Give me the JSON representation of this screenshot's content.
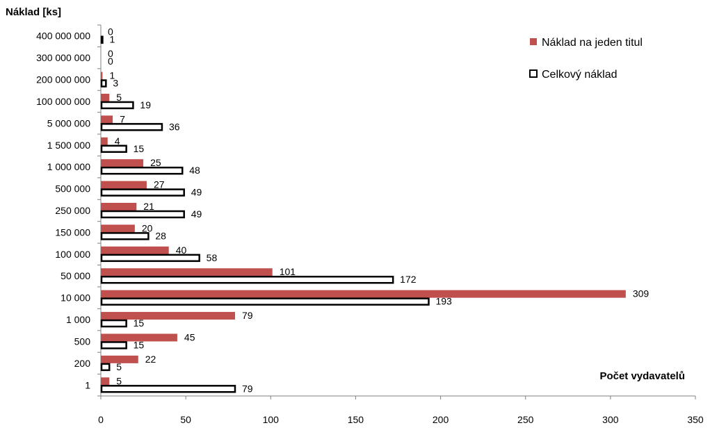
{
  "chart_data": {
    "type": "bar",
    "orientation": "horizontal",
    "ylabel": "Náklad [ks]",
    "xlabel": "Počet vydavatelů",
    "categories": [
      "1",
      "200",
      "500",
      "1 000",
      "10 000",
      "50 000",
      "100 000",
      "150 000",
      "250 000",
      "500 000",
      "1 000 000",
      "1 500 000",
      "5 000 000",
      "100 000 000",
      "200 000 000",
      "300 000 000",
      "400 000 000"
    ],
    "series": [
      {
        "name": "Náklad na jeden titul",
        "color": "#c0504d",
        "values": [
          5,
          22,
          45,
          79,
          309,
          101,
          40,
          20,
          21,
          27,
          25,
          4,
          7,
          5,
          1,
          0,
          0
        ]
      },
      {
        "name": "Celkový náklad",
        "color": "#ffffff",
        "stroke": "#000000",
        "values": [
          79,
          5,
          15,
          15,
          193,
          172,
          58,
          28,
          49,
          49,
          48,
          15,
          36,
          19,
          3,
          0,
          1
        ]
      }
    ],
    "xlim": [
      0,
      350
    ],
    "xticks": [
      "0",
      "50",
      "100",
      "150",
      "200",
      "250",
      "300",
      "350"
    ],
    "xtick_values": [
      0,
      50,
      100,
      150,
      200,
      250,
      300,
      350
    ],
    "grid": false,
    "legend_position": "top-right"
  }
}
